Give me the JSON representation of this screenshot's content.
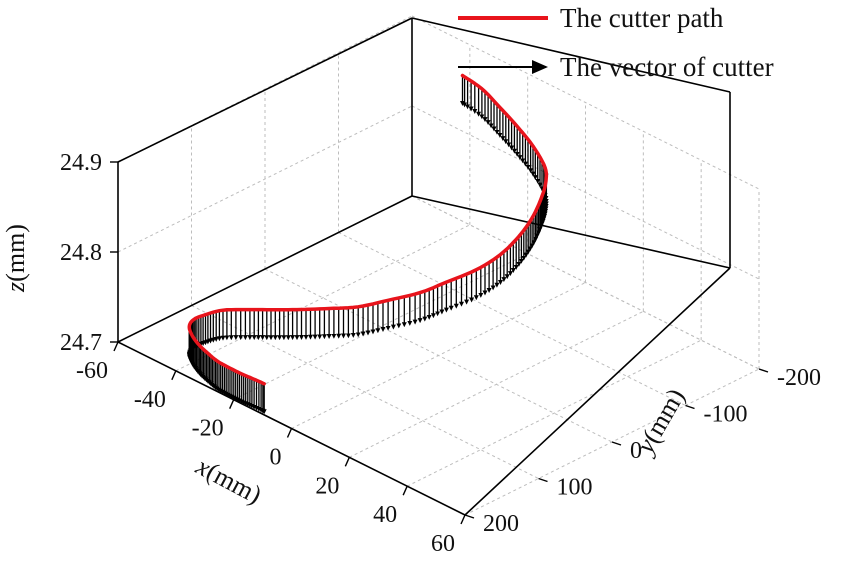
{
  "chart_data": {
    "type": "line",
    "projection": "3d",
    "title": "",
    "grid": true,
    "legend_position": "top-right",
    "legend": [
      {
        "label": "The cutter path",
        "symbol": "line",
        "color": "#e8141c"
      },
      {
        "label": "The vector of cutter",
        "symbol": "arrow",
        "color": "#000000"
      }
    ],
    "axes": {
      "x": {
        "label_var": "x",
        "label_unit": "(mm)",
        "range": [
          -60,
          60
        ],
        "ticks": [
          "-60",
          "-40",
          "-20",
          "0",
          "20",
          "40",
          "60"
        ]
      },
      "y": {
        "label_var": "y",
        "label_unit": "(mm)",
        "range": [
          -200,
          200
        ],
        "ticks": [
          "-200",
          "-100",
          "0",
          "100",
          "200"
        ]
      },
      "z": {
        "label_var": "z",
        "label_unit": "(mm)",
        "range": [
          24.7,
          24.9
        ],
        "ticks": [
          "24.7",
          "24.8",
          "24.9"
        ]
      }
    },
    "series": [
      {
        "name": "The cutter path",
        "color": "#e8141c",
        "style": "line",
        "x": [
          -40,
          -32,
          -24,
          -16,
          -8,
          0,
          4,
          7,
          9,
          10,
          10,
          8,
          4,
          0,
          -6,
          -12,
          -18,
          -24,
          -30,
          -36,
          -42,
          -45,
          -46,
          -45,
          -42,
          -38,
          -34,
          -30,
          -26,
          -22,
          -18,
          -14
        ],
        "y": [
          -190,
          -185,
          -178,
          -170,
          -160,
          -145,
          -130,
          -112,
          -92,
          -70,
          -45,
          -20,
          5,
          25,
          45,
          62,
          78,
          92,
          104,
          115,
          128,
          140,
          152,
          162,
          170,
          176,
          180,
          183,
          184,
          184,
          183,
          182
        ],
        "z": [
          24.87,
          24.87,
          24.865,
          24.86,
          24.855,
          24.85,
          24.845,
          24.84,
          24.83,
          24.82,
          24.81,
          24.8,
          24.79,
          24.78,
          24.77,
          24.76,
          24.755,
          24.75,
          24.745,
          24.74,
          24.735,
          24.73,
          24.728,
          24.726,
          24.724,
          24.722,
          24.721,
          24.72,
          24.72,
          24.72,
          24.72,
          24.72
        ]
      },
      {
        "name": "The vector of cutter",
        "color": "#000000",
        "style": "arrows",
        "direction": [
          0,
          0,
          -1
        ]
      }
    ]
  }
}
